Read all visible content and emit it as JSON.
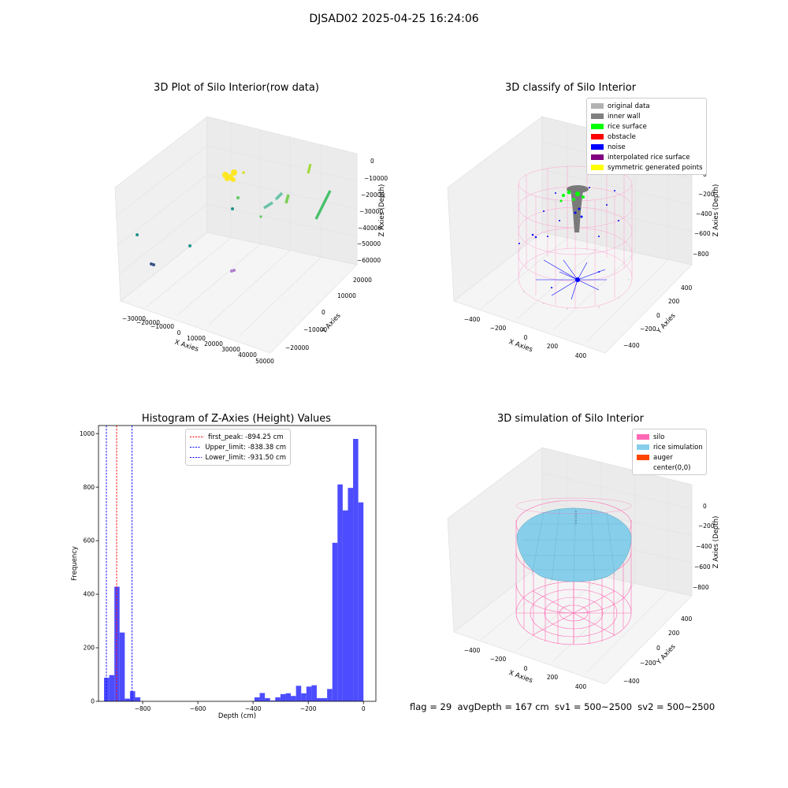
{
  "suptitle": "DJSAD02 2025-04-25 16:24:06",
  "footer": "flag = 29  avgDepth = 167 cm  sv1 = 500~2500  sv2 = 500~2500",
  "chart_data": [
    {
      "type": "scatter",
      "title": "3D Plot of Silo Interior(row data)",
      "xlabel": "X Axies",
      "ylabel": "Y Axies",
      "zlabel": "Z Axies (Depth)",
      "xticks": [
        "−30000",
        "−20000",
        "−10000",
        "0",
        "10000",
        "20000",
        "30000",
        "40000",
        "50000"
      ],
      "yticks": [
        "−20000",
        "−10000",
        "0",
        "10000",
        "20000"
      ],
      "zticks": [
        "0",
        "−10000",
        "−20000",
        "−30000",
        "−40000",
        "−50000",
        "−60000"
      ],
      "colors": [
        "#440154",
        "#3b528b",
        "#21918c",
        "#5ec962",
        "#fde725"
      ]
    },
    {
      "type": "scatter",
      "title": "3D classify of Silo Interior",
      "xlabel": "X Axies",
      "ylabel": "Y Axies",
      "zlabel": "Z Axies (Depth)",
      "xticks": [
        "−400",
        "−200",
        "0",
        "200",
        "400"
      ],
      "yticks": [
        "−400",
        "−200",
        "0",
        "200",
        "400"
      ],
      "zticks": [
        "0",
        "−200",
        "−400",
        "−600",
        "−800"
      ],
      "legend": [
        {
          "label": "original data",
          "color": "#b3b3b3"
        },
        {
          "label": "inner wall",
          "color": "#808080"
        },
        {
          "label": "rice surface",
          "color": "#00ff00"
        },
        {
          "label": "obstacle",
          "color": "#ff0000"
        },
        {
          "label": "noise",
          "color": "#0000ff"
        },
        {
          "label": "interpolated rice surface",
          "color": "#800080"
        },
        {
          "label": "symmetric generated points",
          "color": "#ffff00"
        }
      ],
      "legend_position": "top-right"
    },
    {
      "type": "bar",
      "title": "Histogram of Z-Axies (Height) Values",
      "xlabel": "Depth (cm)",
      "ylabel": "Frequency",
      "xlim": [
        -960,
        45
      ],
      "ylim": [
        0,
        1030
      ],
      "xticks": [
        -800,
        -600,
        -400,
        -200,
        0
      ],
      "xtick_labels": [
        "−800",
        "−600",
        "−400",
        "−200",
        "0"
      ],
      "yticks": [
        0,
        200,
        400,
        600,
        800,
        1000
      ],
      "bar_color": "#4d4dff",
      "bins": {
        "start": -940,
        "width": 18.8,
        "counts": [
          88,
          98,
          428,
          257,
          10,
          38,
          15,
          0,
          0,
          0,
          0,
          0,
          0,
          0,
          0,
          0,
          0,
          0,
          0,
          0,
          0,
          0,
          0,
          0,
          0,
          0,
          0,
          0,
          1,
          15,
          31,
          12,
          3,
          15,
          27,
          30,
          20,
          58,
          30,
          55,
          60,
          12,
          12,
          46,
          592,
          810,
          713,
          797,
          980,
          743
        ]
      },
      "vlines": [
        {
          "label": "first_peak: -894.25 cm",
          "x": -894.25,
          "color": "#ff0000"
        },
        {
          "label": "Upper_limit: -838.38 cm",
          "x": -838.38,
          "color": "#0000ff"
        },
        {
          "label": "Lower_limit: -931.50 cm",
          "x": -931.5,
          "color": "#0000ff"
        }
      ],
      "legend_position": "top-center"
    },
    {
      "type": "scatter",
      "title": "3D simulation of Silo Interior",
      "xlabel": "X Axies",
      "ylabel": "Y Axies",
      "zlabel": "Z Axies (Depth)",
      "xticks": [
        "−400",
        "−200",
        "0",
        "200",
        "400"
      ],
      "yticks": [
        "−400",
        "−200",
        "0",
        "200",
        "400"
      ],
      "zticks": [
        "0",
        "−200",
        "−400",
        "−600",
        "−800"
      ],
      "legend": [
        {
          "label": "silo",
          "color": "#ff69b4"
        },
        {
          "label": "rice simulation",
          "color": "#87ceeb"
        },
        {
          "label": "auger",
          "color": "#ff4500"
        },
        {
          "label": "center(0,0)",
          "color": "#ffffff"
        }
      ],
      "legend_position": "top-right"
    }
  ]
}
